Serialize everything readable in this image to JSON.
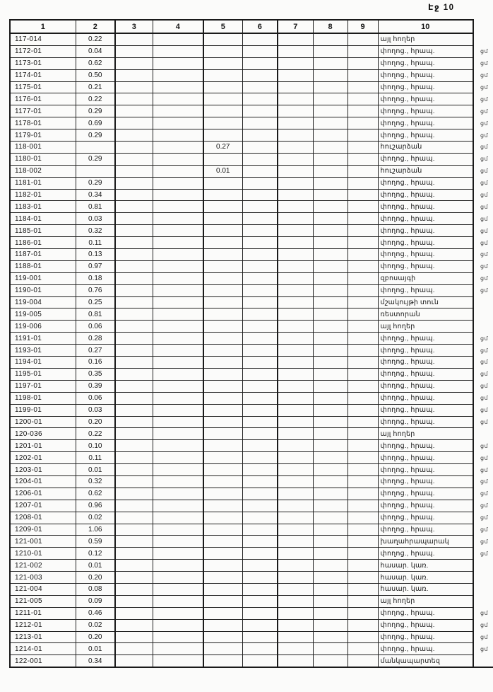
{
  "page": {
    "label": "Էջ 10"
  },
  "table": {
    "headers": [
      "1",
      "2",
      "3",
      "4",
      "5",
      "6",
      "7",
      "8",
      "9",
      "10"
    ],
    "rows": [
      {
        "id": "117-014",
        "area": "0.22",
        "col5": "",
        "land_use": "այլ հողեր",
        "margin_note": ""
      },
      {
        "id": "1172-01",
        "area": "0.04",
        "col5": "",
        "land_use": "փողոց., հրապ.",
        "margin_note": "ցմ"
      },
      {
        "id": "1173-01",
        "area": "0.62",
        "col5": "",
        "land_use": "փողոց., հրապ.",
        "margin_note": "ցմ"
      },
      {
        "id": "1174-01",
        "area": "0.50",
        "col5": "",
        "land_use": "փողոց., հրապ.",
        "margin_note": "ցմ"
      },
      {
        "id": "1175-01",
        "area": "0.21",
        "col5": "",
        "land_use": "փողոց., հրապ.",
        "margin_note": "ցմ"
      },
      {
        "id": "1176-01",
        "area": "0.22",
        "col5": "",
        "land_use": "փողոց., հրապ.",
        "margin_note": "ցմ"
      },
      {
        "id": "1177-01",
        "area": "0.29",
        "col5": "",
        "land_use": "փողոց., հրապ.",
        "margin_note": "ցմ"
      },
      {
        "id": "1178-01",
        "area": "0.69",
        "col5": "",
        "land_use": "փողոց., հրապ.",
        "margin_note": "ցմ"
      },
      {
        "id": "1179-01",
        "area": "0.29",
        "col5": "",
        "land_use": "փողոց., հրապ.",
        "margin_note": "ցմ"
      },
      {
        "id": "118-001",
        "area": "",
        "col5": "0.27",
        "land_use": "հուշարձան",
        "margin_note": "ցմ"
      },
      {
        "id": "1180-01",
        "area": "0.29",
        "col5": "",
        "land_use": "փողոց., հրապ.",
        "margin_note": "ցմ"
      },
      {
        "id": "118-002",
        "area": "",
        "col5": "0.01",
        "land_use": "հուշարձան",
        "margin_note": "ցմ"
      },
      {
        "id": "1181-01",
        "area": "0.29",
        "col5": "",
        "land_use": "փողոց., հրապ.",
        "margin_note": "ցմ"
      },
      {
        "id": "1182-01",
        "area": "0.34",
        "col5": "",
        "land_use": "փողոց., հրապ.",
        "margin_note": "ցմ"
      },
      {
        "id": "1183-01",
        "area": "0.81",
        "col5": "",
        "land_use": "փողոց., հրապ.",
        "margin_note": "ցմ"
      },
      {
        "id": "1184-01",
        "area": "0.03",
        "col5": "",
        "land_use": "փողոց., հրապ.",
        "margin_note": "ցմ"
      },
      {
        "id": "1185-01",
        "area": "0.32",
        "col5": "",
        "land_use": "փողոց., հրապ.",
        "margin_note": "ցմ"
      },
      {
        "id": "1186-01",
        "area": "0.11",
        "col5": "",
        "land_use": "փողոց., հրապ.",
        "margin_note": "ցմ"
      },
      {
        "id": "1187-01",
        "area": "0.13",
        "col5": "",
        "land_use": "փողոց., հրապ.",
        "margin_note": "ցմ"
      },
      {
        "id": "1188-01",
        "area": "0.97",
        "col5": "",
        "land_use": "փողոց., հրապ.",
        "margin_note": "ցմ"
      },
      {
        "id": "119-001",
        "area": "0.18",
        "col5": "",
        "land_use": "զբոսայգի",
        "margin_note": "ցմ"
      },
      {
        "id": "1190-01",
        "area": "0.76",
        "col5": "",
        "land_use": "փողոց., հրապ.",
        "margin_note": "ցմ"
      },
      {
        "id": "119-004",
        "area": "0.25",
        "col5": "",
        "land_use": "մշակույթի տուն",
        "margin_note": ""
      },
      {
        "id": "119-005",
        "area": "0.81",
        "col5": "",
        "land_use": "ռեստորան",
        "margin_note": ""
      },
      {
        "id": "119-006",
        "area": "0.06",
        "col5": "",
        "land_use": "այլ հողեր",
        "margin_note": ""
      },
      {
        "id": "1191-01",
        "area": "0.28",
        "col5": "",
        "land_use": "փողոց., հրապ.",
        "margin_note": "ցմ"
      },
      {
        "id": "1193-01",
        "area": "0.27",
        "col5": "",
        "land_use": "փողոց., հրապ.",
        "margin_note": "ցմ"
      },
      {
        "id": "1194-01",
        "area": "0.16",
        "col5": "",
        "land_use": "փողոց., հրապ.",
        "margin_note": "ցմ"
      },
      {
        "id": "1195-01",
        "area": "0.35",
        "col5": "",
        "land_use": "փողոց., հրապ.",
        "margin_note": "ցմ"
      },
      {
        "id": "1197-01",
        "area": "0.39",
        "col5": "",
        "land_use": "փողոց., հրապ.",
        "margin_note": "ցմ"
      },
      {
        "id": "1198-01",
        "area": "0.06",
        "col5": "",
        "land_use": "փողոց., հրապ.",
        "margin_note": "ցմ"
      },
      {
        "id": "1199-01",
        "area": "0.03",
        "col5": "",
        "land_use": "փողոց., հրապ.",
        "margin_note": "ցմ"
      },
      {
        "id": "1200-01",
        "area": "0.20",
        "col5": "",
        "land_use": "փողոց., հրապ.",
        "margin_note": "ցմ"
      },
      {
        "id": "120-036",
        "area": "0.22",
        "col5": "",
        "land_use": "այլ հողեր",
        "margin_note": ""
      },
      {
        "id": "1201-01",
        "area": "0.10",
        "col5": "",
        "land_use": "փողոց., հրապ.",
        "margin_note": "ցմ"
      },
      {
        "id": "1202-01",
        "area": "0.11",
        "col5": "",
        "land_use": "փողոց., հրապ.",
        "margin_note": "ցմ"
      },
      {
        "id": "1203-01",
        "area": "0.01",
        "col5": "",
        "land_use": "փողոց., հրապ.",
        "margin_note": "ցմ"
      },
      {
        "id": "1204-01",
        "area": "0.32",
        "col5": "",
        "land_use": "փողոց., հրապ.",
        "margin_note": "ցմ"
      },
      {
        "id": "1206-01",
        "area": "0.62",
        "col5": "",
        "land_use": "փողոց., հրապ.",
        "margin_note": "ցմ"
      },
      {
        "id": "1207-01",
        "area": "0.96",
        "col5": "",
        "land_use": "փողոց., հրապ.",
        "margin_note": "ցմ"
      },
      {
        "id": "1208-01",
        "area": "0.02",
        "col5": "",
        "land_use": "փողոց., հրապ.",
        "margin_note": "ցմ"
      },
      {
        "id": "1209-01",
        "area": "1.06",
        "col5": "",
        "land_use": "փողոց., հրապ.",
        "margin_note": "ցմ"
      },
      {
        "id": "121-001",
        "area": "0.59",
        "col5": "",
        "land_use": "խաղահրապարակ",
        "margin_note": "ցմ"
      },
      {
        "id": "1210-01",
        "area": "0.12",
        "col5": "",
        "land_use": "փողոց., հրապ.",
        "margin_note": "ցմ"
      },
      {
        "id": "121-002",
        "area": "0.01",
        "col5": "",
        "land_use": "հասար. կառ.",
        "margin_note": ""
      },
      {
        "id": "121-003",
        "area": "0.20",
        "col5": "",
        "land_use": "հասար. կառ.",
        "margin_note": ""
      },
      {
        "id": "121-004",
        "area": "0.08",
        "col5": "",
        "land_use": "հասար. կառ.",
        "margin_note": ""
      },
      {
        "id": "121-005",
        "area": "0.09",
        "col5": "",
        "land_use": "այլ հողեր",
        "margin_note": ""
      },
      {
        "id": "1211-01",
        "area": "0.46",
        "col5": "",
        "land_use": "փողոց., հրապ.",
        "margin_note": "ցմ"
      },
      {
        "id": "1212-01",
        "area": "0.02",
        "col5": "",
        "land_use": "փողոց., հրապ.",
        "margin_note": "ցմ"
      },
      {
        "id": "1213-01",
        "area": "0.20",
        "col5": "",
        "land_use": "փողոց., հրապ.",
        "margin_note": "ցմ"
      },
      {
        "id": "1214-01",
        "area": "0.01",
        "col5": "",
        "land_use": "փողոց., հրապ.",
        "margin_note": "ցմ"
      },
      {
        "id": "122-001",
        "area": "0.34",
        "col5": "",
        "land_use": "մանկապարտեզ",
        "margin_note": ""
      }
    ]
  }
}
